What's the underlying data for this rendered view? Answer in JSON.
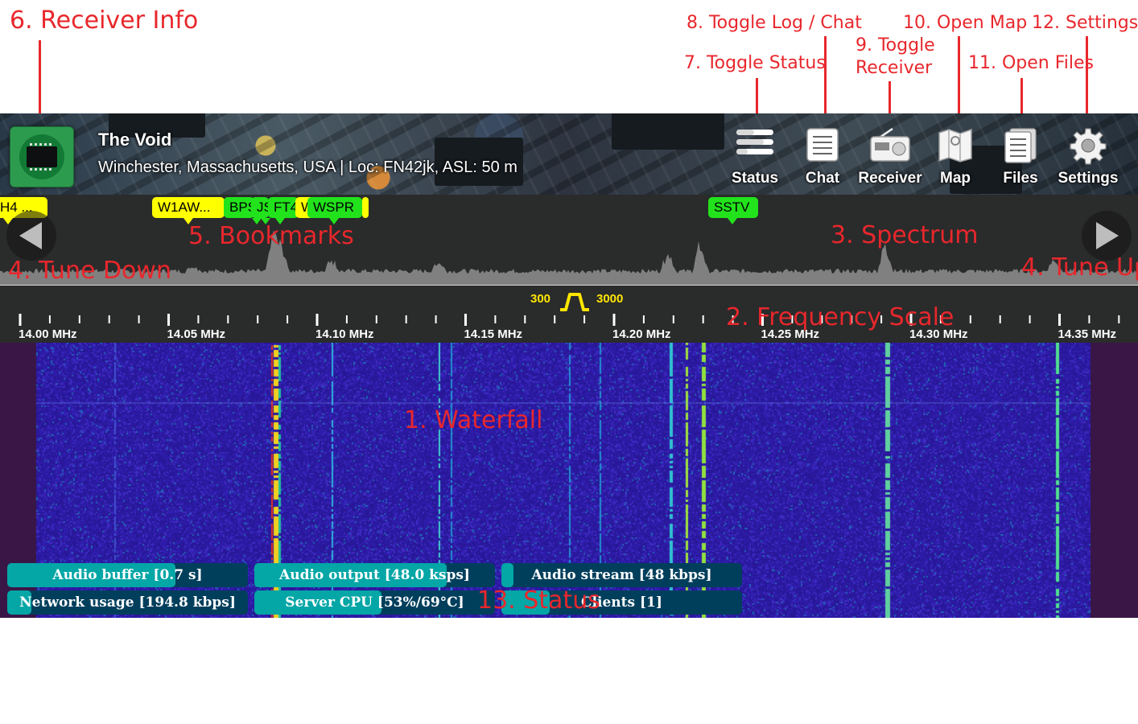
{
  "annotations": {
    "waterfall": "1. Waterfall",
    "frequency_scale": "2. Frequency Scale",
    "spectrum": "3. Spectrum",
    "tune_down": "4. Tune Down",
    "tune_up": "4. Tune Up",
    "bookmarks": "5. Bookmarks",
    "receiver_info": "6. Receiver Info",
    "toggle_status": "7. Toggle Status",
    "toggle_log_chat": "8. Toggle Log / Chat",
    "toggle_receiver_line1": "9. Toggle",
    "toggle_receiver_line2": "Receiver",
    "open_map": "10. Open Map",
    "open_files": "11. Open Files",
    "settings": "12. Settings",
    "status": "13. Status"
  },
  "receiver": {
    "name": "The Void",
    "details": "Winchester, Massachusetts, USA | Loc: FN42jk, ASL: 50 m",
    "avatar_icon": "chip-icon"
  },
  "header_buttons": [
    {
      "id": "status",
      "label": "Status",
      "icon": "status-bars-icon"
    },
    {
      "id": "chat",
      "label": "Chat",
      "icon": "chat-log-icon"
    },
    {
      "id": "receiver",
      "label": "Receiver",
      "icon": "radio-receiver-icon"
    },
    {
      "id": "map",
      "label": "Map",
      "icon": "map-icon"
    },
    {
      "id": "files",
      "label": "Files",
      "icon": "files-icon"
    },
    {
      "id": "settings",
      "label": "Settings",
      "icon": "gear-icon"
    }
  ],
  "bookmarks": [
    {
      "label": "H4 ...",
      "color": "#ffff00"
    },
    {
      "label": "W1AW...",
      "color": "#ffff00"
    },
    {
      "label": "BPSK",
      "color": "#22e21c"
    },
    {
      "label": "JS8",
      "color": "#22e21c"
    },
    {
      "label": "FT4",
      "color": "#22e21c"
    },
    {
      "label": "W1",
      "color": "#ffff00"
    },
    {
      "label": "WSPR",
      "color": "#22e21c"
    },
    {
      "label": "SSTV",
      "color": "#22e21c"
    }
  ],
  "filter": {
    "low": "300",
    "high": "3000"
  },
  "frequency_ticks": [
    "14.00 MHz",
    "14.05 MHz",
    "14.10 MHz",
    "14.15 MHz",
    "14.20 MHz",
    "14.25 MHz",
    "14.30 MHz",
    "14.35 MHz"
  ],
  "status_bars": [
    {
      "label": "Audio buffer [0.7 s]",
      "level": 0.7
    },
    {
      "label": "Audio output [48.0 ksps]",
      "level": 0.8
    },
    {
      "label": "Audio stream [48 kbps]",
      "level": 0.05
    },
    {
      "label": "Network usage [194.8 kbps]",
      "level": 0.1
    },
    {
      "label": "Server CPU [53%/69°C]",
      "level": 0.53
    },
    {
      "label": "Clients [1]",
      "level": 0.2
    }
  ],
  "colors": {
    "accent": "#e8272c",
    "panel": "#2a2b2b",
    "status_fill": "#04a6a6",
    "status_bg": "#003f5c"
  }
}
